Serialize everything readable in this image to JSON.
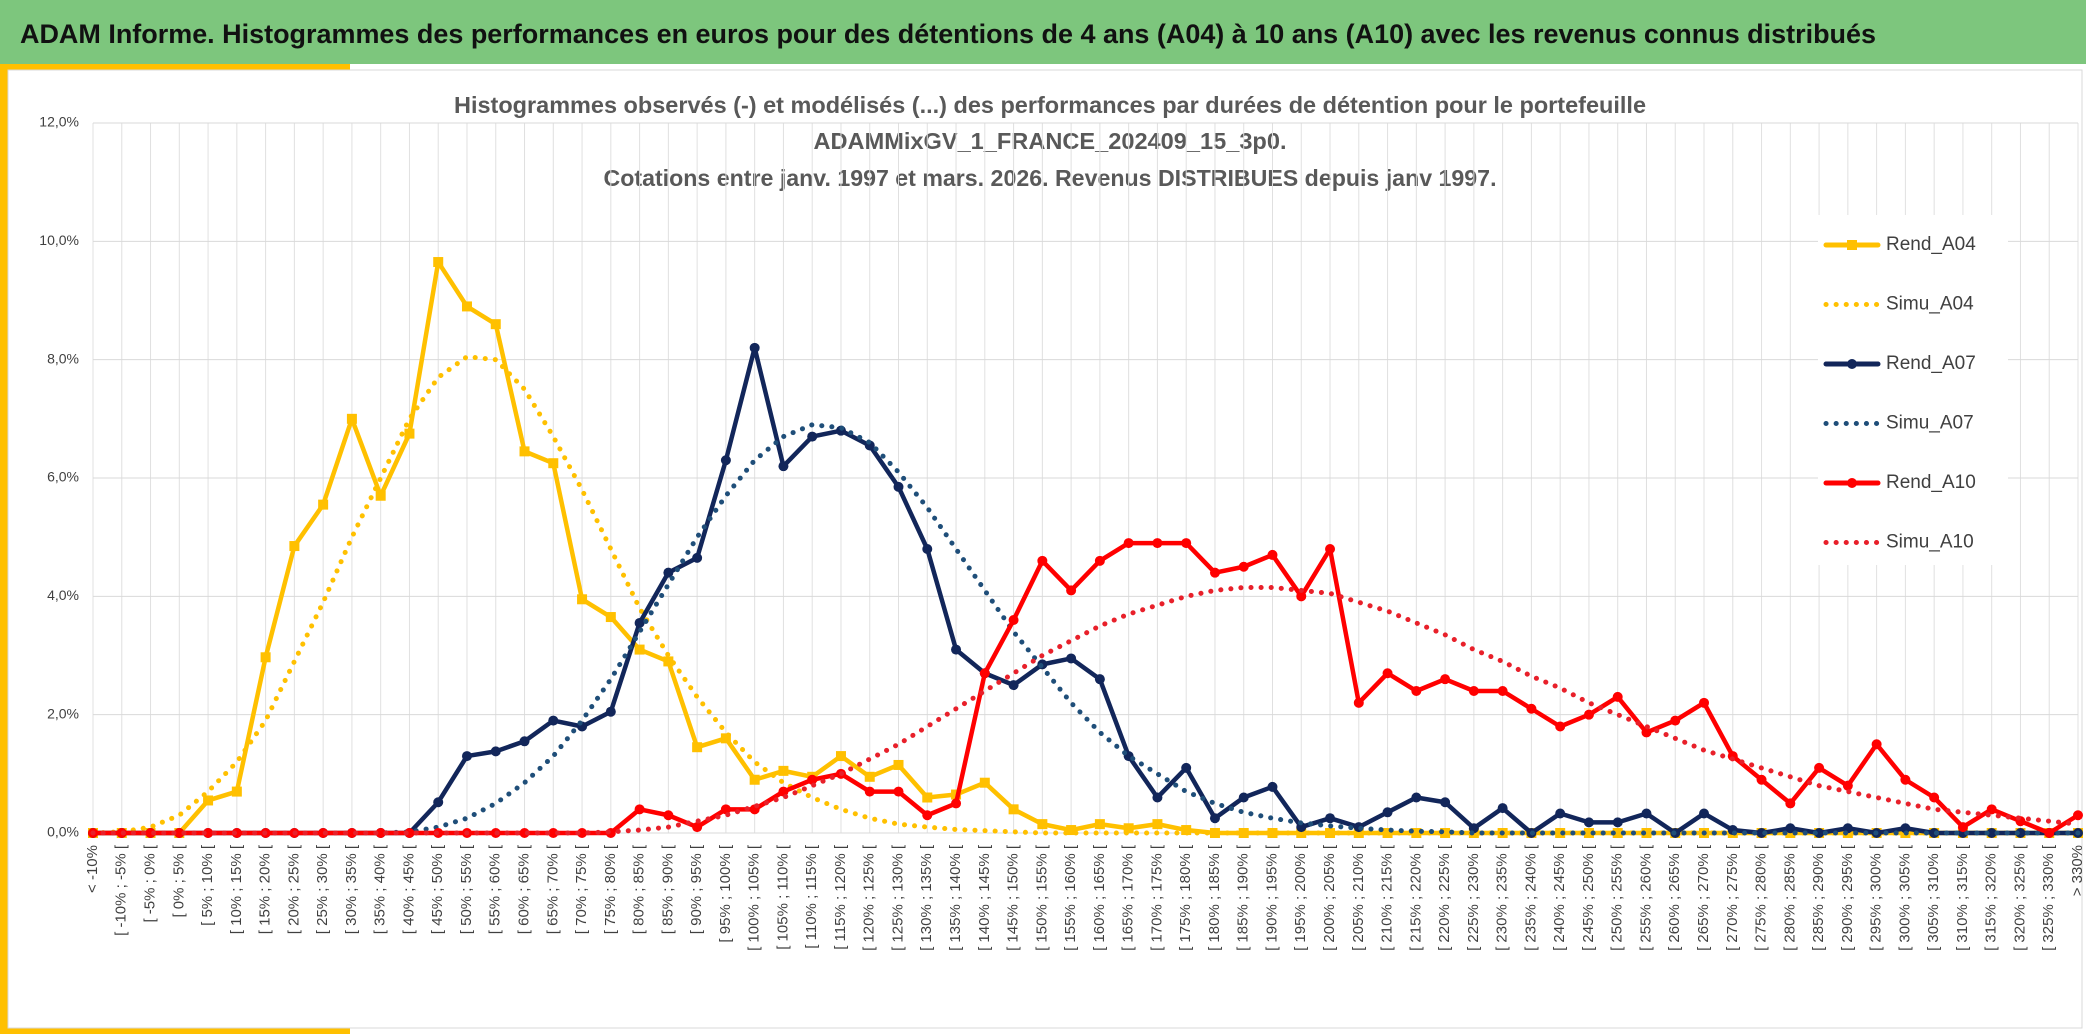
{
  "header": {
    "title": "ADAM Informe. Histogrammes des performances en euros pour des détentions de 4 ans (A04) à 10 ans (A10) avec les revenus connus distribués"
  },
  "chart_data": {
    "type": "line",
    "title": [
      "Histogrammes observés (-) et modélisés (...) des performances par durées de détention pour le portefeuille",
      "ADAMMixGV_1_FRANCE_202409_15_3p0.",
      "Cotations entre janv. 1997 et mars. 2026. Revenus DISTRIBUES depuis janv 1997."
    ],
    "categories": [
      "< -10%",
      "[ -10% ; -5% [",
      "[ -5% ; 0% [",
      "[ 0% ; 5% [",
      "[ 5% ; 10% [",
      "[ 10% ; 15% [",
      "[ 15% ; 20% [",
      "[ 20% ; 25% [",
      "[ 25% ; 30% [",
      "[ 30% ; 35% [",
      "[ 35% ; 40% [",
      "[ 40% ; 45% [",
      "[ 45% ; 50% [",
      "[ 50% ; 55% [",
      "[ 55% ; 60% [",
      "[ 60% ; 65% [",
      "[ 65% ; 70% [",
      "[ 70% ; 75% [",
      "[ 75% ; 80% [",
      "[ 80% ; 85% [",
      "[ 85% ; 90% [",
      "[ 90% ; 95% [",
      "[ 95% ; 100% [",
      "[ 100% ; 105% [",
      "[ 105% ; 110% [",
      "[ 110% ; 115% [",
      "[ 115% ; 120% [",
      "[ 120% ; 125% [",
      "[ 125% ; 130% [",
      "[ 130% ; 135% [",
      "[ 135% ; 140% [",
      "[ 140% ; 145% [",
      "[ 145% ; 150% [",
      "[ 150% ; 155% [",
      "[ 155% ; 160% [",
      "[ 160% ; 165% [",
      "[ 165% ; 170% [",
      "[ 170% ; 175% [",
      "[ 175% ; 180% [",
      "[ 180% ; 185% [",
      "[ 185% ; 190% [",
      "[ 190% ; 195% [",
      "[ 195% ; 200% [",
      "[ 200% ; 205% [",
      "[ 205% ; 210% [",
      "[ 210% ; 215% [",
      "[ 215% ; 220% [",
      "[ 220% ; 225% [",
      "[ 225% ; 230% [",
      "[ 230% ; 235% [",
      "[ 235% ; 240% [",
      "[ 240% ; 245% [",
      "[ 245% ; 250% [",
      "[ 250% ; 255% [",
      "[ 255% ; 260% [",
      "[ 260% ; 265% [",
      "[ 265% ; 270% [",
      "[ 270% ; 275% [",
      "[ 275% ; 280% [",
      "[ 280% ; 285% [",
      "[ 285% ; 290% [",
      "[ 290% ; 295% [",
      "[ 295% ; 300% [",
      "[ 300% ; 305% [",
      "[ 305% ; 310% [",
      "[ 310% ; 315% [",
      "[ 315% ; 320% [",
      "[ 320% ; 325% [",
      "[ 325% ; 330% [",
      "> 330%"
    ],
    "ylim": [
      0,
      12
    ],
    "yticks": [
      {
        "value": 0,
        "label": "0,0%"
      },
      {
        "value": 2,
        "label": "2,0%"
      },
      {
        "value": 4,
        "label": "4,0%"
      },
      {
        "value": 6,
        "label": "6,0%"
      },
      {
        "value": 8,
        "label": "8,0%"
      },
      {
        "value": 10,
        "label": "10,0%"
      },
      {
        "value": 12,
        "label": "12,0%"
      }
    ],
    "grid": true,
    "legend": "right",
    "series": [
      {
        "name": "Rend_A04",
        "color": "#ffc000",
        "style": "solid",
        "marker": "square",
        "values": [
          0,
          0,
          0,
          0,
          0.55,
          0.7,
          2.97,
          4.85,
          5.55,
          7.0,
          5.7,
          6.75,
          9.65,
          8.9,
          8.6,
          6.45,
          6.25,
          3.95,
          3.65,
          3.1,
          2.9,
          1.45,
          1.6,
          0.9,
          1.05,
          0.95,
          1.3,
          0.95,
          1.15,
          0.6,
          0.65,
          0.85,
          0.4,
          0.15,
          0.05,
          0.15,
          0.08,
          0.15,
          0.05,
          0,
          0,
          0,
          0,
          0,
          0,
          0,
          0,
          0,
          0,
          0,
          0,
          0,
          0,
          0,
          0,
          0,
          0,
          0,
          0,
          0,
          0,
          0,
          0,
          0,
          0,
          0,
          0,
          0,
          0,
          0
        ]
      },
      {
        "name": "Simu_A04",
        "color": "#ffc000",
        "style": "dotted",
        "values": [
          0,
          0.02,
          0.1,
          0.3,
          0.7,
          1.2,
          1.9,
          2.9,
          3.9,
          5.0,
          6.0,
          7.0,
          7.7,
          8.05,
          8.0,
          7.5,
          6.7,
          5.8,
          4.8,
          3.8,
          3.0,
          2.3,
          1.7,
          1.2,
          0.85,
          0.6,
          0.4,
          0.25,
          0.15,
          0.1,
          0.06,
          0.04,
          0.02,
          0,
          0,
          0,
          0,
          0,
          0,
          0,
          0,
          0,
          0,
          0,
          0,
          0,
          0,
          0,
          0,
          0,
          0,
          0,
          0,
          0,
          0,
          0,
          0,
          0,
          0,
          0,
          0,
          0,
          0,
          0,
          0,
          0,
          0,
          0,
          0,
          0
        ]
      },
      {
        "name": "Rend_A07",
        "color": "#12265a",
        "style": "solid",
        "marker": "circle",
        "values": [
          0,
          0,
          0,
          0,
          0,
          0,
          0,
          0,
          0,
          0,
          0,
          0,
          0.52,
          1.3,
          1.38,
          1.55,
          1.9,
          1.8,
          2.05,
          3.55,
          4.4,
          4.65,
          6.3,
          8.2,
          6.2,
          6.7,
          6.8,
          6.55,
          5.85,
          4.8,
          3.1,
          2.7,
          2.5,
          2.85,
          2.95,
          2.6,
          1.3,
          0.6,
          1.1,
          0.25,
          0.6,
          0.78,
          0.1,
          0.25,
          0.1,
          0.35,
          0.6,
          0.52,
          0.08,
          0.42,
          0,
          0.33,
          0.18,
          0.18,
          0.33,
          0,
          0.33,
          0.05,
          0,
          0.08,
          0,
          0.08,
          0,
          0.08,
          0,
          0,
          0,
          0,
          0,
          0
        ]
      },
      {
        "name": "Simu_A07",
        "color": "#1f4e79",
        "style": "dotted",
        "values": [
          0,
          0,
          0,
          0,
          0,
          0,
          0,
          0,
          0,
          0,
          0,
          0.02,
          0.1,
          0.25,
          0.5,
          0.85,
          1.3,
          1.9,
          2.6,
          3.4,
          4.2,
          5.0,
          5.7,
          6.3,
          6.7,
          6.9,
          6.85,
          6.6,
          6.1,
          5.5,
          4.8,
          4.1,
          3.4,
          2.8,
          2.2,
          1.7,
          1.3,
          1.0,
          0.7,
          0.5,
          0.35,
          0.25,
          0.17,
          0.12,
          0.08,
          0.05,
          0.03,
          0.02,
          0,
          0,
          0,
          0,
          0,
          0,
          0,
          0,
          0,
          0,
          0,
          0,
          0,
          0,
          0,
          0,
          0,
          0,
          0,
          0,
          0,
          0
        ]
      },
      {
        "name": "Rend_A10",
        "color": "#ff0000",
        "style": "solid",
        "marker": "circle",
        "values": [
          0,
          0,
          0,
          0,
          0,
          0,
          0,
          0,
          0,
          0,
          0,
          0,
          0,
          0,
          0,
          0,
          0,
          0,
          0,
          0.4,
          0.3,
          0.1,
          0.4,
          0.4,
          0.7,
          0.9,
          1.0,
          0.7,
          0.7,
          0.3,
          0.5,
          2.7,
          3.6,
          4.6,
          4.1,
          4.6,
          4.9,
          4.9,
          4.9,
          4.4,
          4.5,
          4.7,
          4.0,
          4.8,
          2.2,
          2.7,
          2.4,
          2.6,
          2.4,
          2.4,
          2.1,
          1.8,
          2.0,
          2.3,
          1.7,
          1.9,
          2.2,
          1.3,
          0.9,
          0.5,
          1.1,
          0.8,
          1.5,
          0.9,
          0.6,
          0.1,
          0.4,
          0.2,
          0,
          0.3
        ]
      },
      {
        "name": "Simu_A10",
        "color": "#e8202a",
        "style": "dotted",
        "values": [
          0,
          0,
          0,
          0,
          0,
          0,
          0,
          0,
          0,
          0,
          0,
          0,
          0,
          0,
          0,
          0,
          0,
          0,
          0.02,
          0.05,
          0.1,
          0.2,
          0.3,
          0.45,
          0.6,
          0.8,
          1.0,
          1.25,
          1.5,
          1.8,
          2.1,
          2.4,
          2.7,
          3.0,
          3.25,
          3.5,
          3.7,
          3.85,
          4.0,
          4.1,
          4.15,
          4.15,
          4.1,
          4.05,
          3.9,
          3.75,
          3.55,
          3.35,
          3.1,
          2.9,
          2.65,
          2.45,
          2.2,
          2.0,
          1.8,
          1.6,
          1.4,
          1.25,
          1.1,
          0.95,
          0.8,
          0.7,
          0.6,
          0.5,
          0.4,
          0.35,
          0.3,
          0.25,
          0.2,
          0.15
        ]
      }
    ]
  }
}
